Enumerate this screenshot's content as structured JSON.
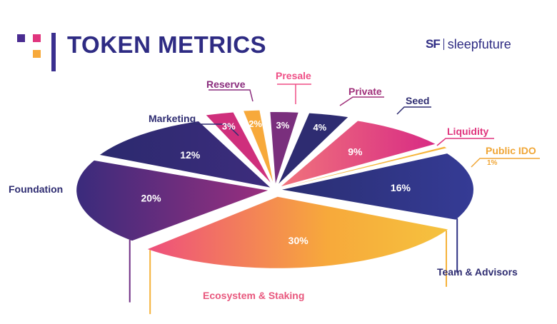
{
  "header": {
    "title": "TOKEN METRICS",
    "brand_mark": "SF",
    "brand_name": "sleepfuture"
  },
  "chart_data": {
    "type": "pie",
    "title": "TOKEN METRICS",
    "slices": [
      {
        "label": "Presale",
        "value": 2,
        "value_label": "2%",
        "color": "#f7a93b",
        "label_color": "#ef4f86"
      },
      {
        "label": "Private",
        "value": 3,
        "value_label": "3%",
        "color": "#7a2f7d",
        "label_color": "#a0307a"
      },
      {
        "label": "Seed",
        "value": 4,
        "value_label": "4%",
        "color": "#2e2c71",
        "label_color": "#2e2c71"
      },
      {
        "label": "Liquidity",
        "value": 9,
        "value_label": "9%",
        "color": "#e0357e",
        "label_color": "#e0357e"
      },
      {
        "label": "Public IDO",
        "value": 1,
        "value_label": "1%",
        "color": "#f6b53b",
        "label_color": "#f0a636"
      },
      {
        "label": "Team & Advisors",
        "value": 16,
        "value_label": "16%",
        "color": "#2e3283",
        "label_color": "#2e2c71"
      },
      {
        "label": "Ecosystem & Staking",
        "value": 30,
        "value_label": "30%",
        "color": "#f5b239",
        "label_color": "#e8577d"
      },
      {
        "label": "Foundation",
        "value": 20,
        "value_label": "20%",
        "color": "#6f2d84",
        "label_color": "#2e2c71"
      },
      {
        "label": "Marketing",
        "value": 12,
        "value_label": "12%",
        "color": "#2f2c72",
        "label_color": "#2e2c71"
      },
      {
        "label": "Reserve",
        "value": 3,
        "value_label": "3%",
        "color": "#cf2f7c",
        "label_color": "#8a2c7d"
      }
    ]
  }
}
